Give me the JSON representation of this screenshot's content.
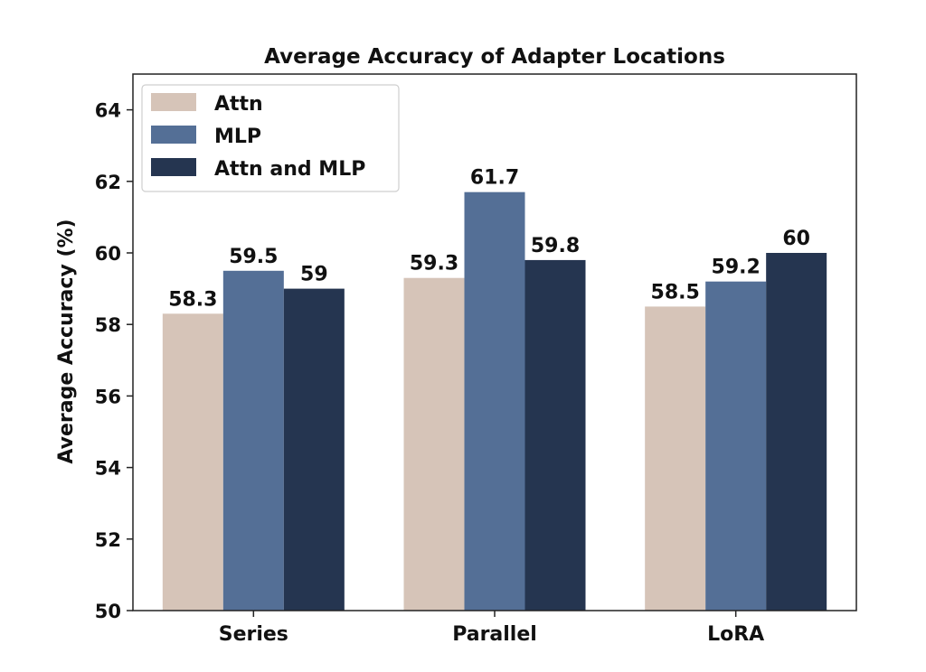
{
  "chart_data": {
    "type": "bar",
    "title": "Average Accuracy of Adapter Locations",
    "xlabel": "",
    "ylabel": "Average Accuracy (%)",
    "ylim": [
      50,
      65
    ],
    "yticks": [
      50,
      52,
      54,
      56,
      58,
      60,
      62,
      64
    ],
    "categories": [
      "Series",
      "Parallel",
      "LoRA"
    ],
    "series": [
      {
        "name": "Attn",
        "values": [
          58.3,
          59.3,
          58.5
        ],
        "labels": [
          "58.3",
          "59.3",
          "58.5"
        ],
        "color": "#d6c4b8"
      },
      {
        "name": "MLP",
        "values": [
          59.5,
          61.7,
          59.2
        ],
        "labels": [
          "59.5",
          "61.7",
          "59.2"
        ],
        "color": "#546f96"
      },
      {
        "name": "Attn and MLP",
        "values": [
          59,
          59.8,
          60
        ],
        "labels": [
          "59",
          "59.8",
          "60"
        ],
        "color": "#253550"
      }
    ],
    "legend_position": "top-left",
    "grid": false
  }
}
